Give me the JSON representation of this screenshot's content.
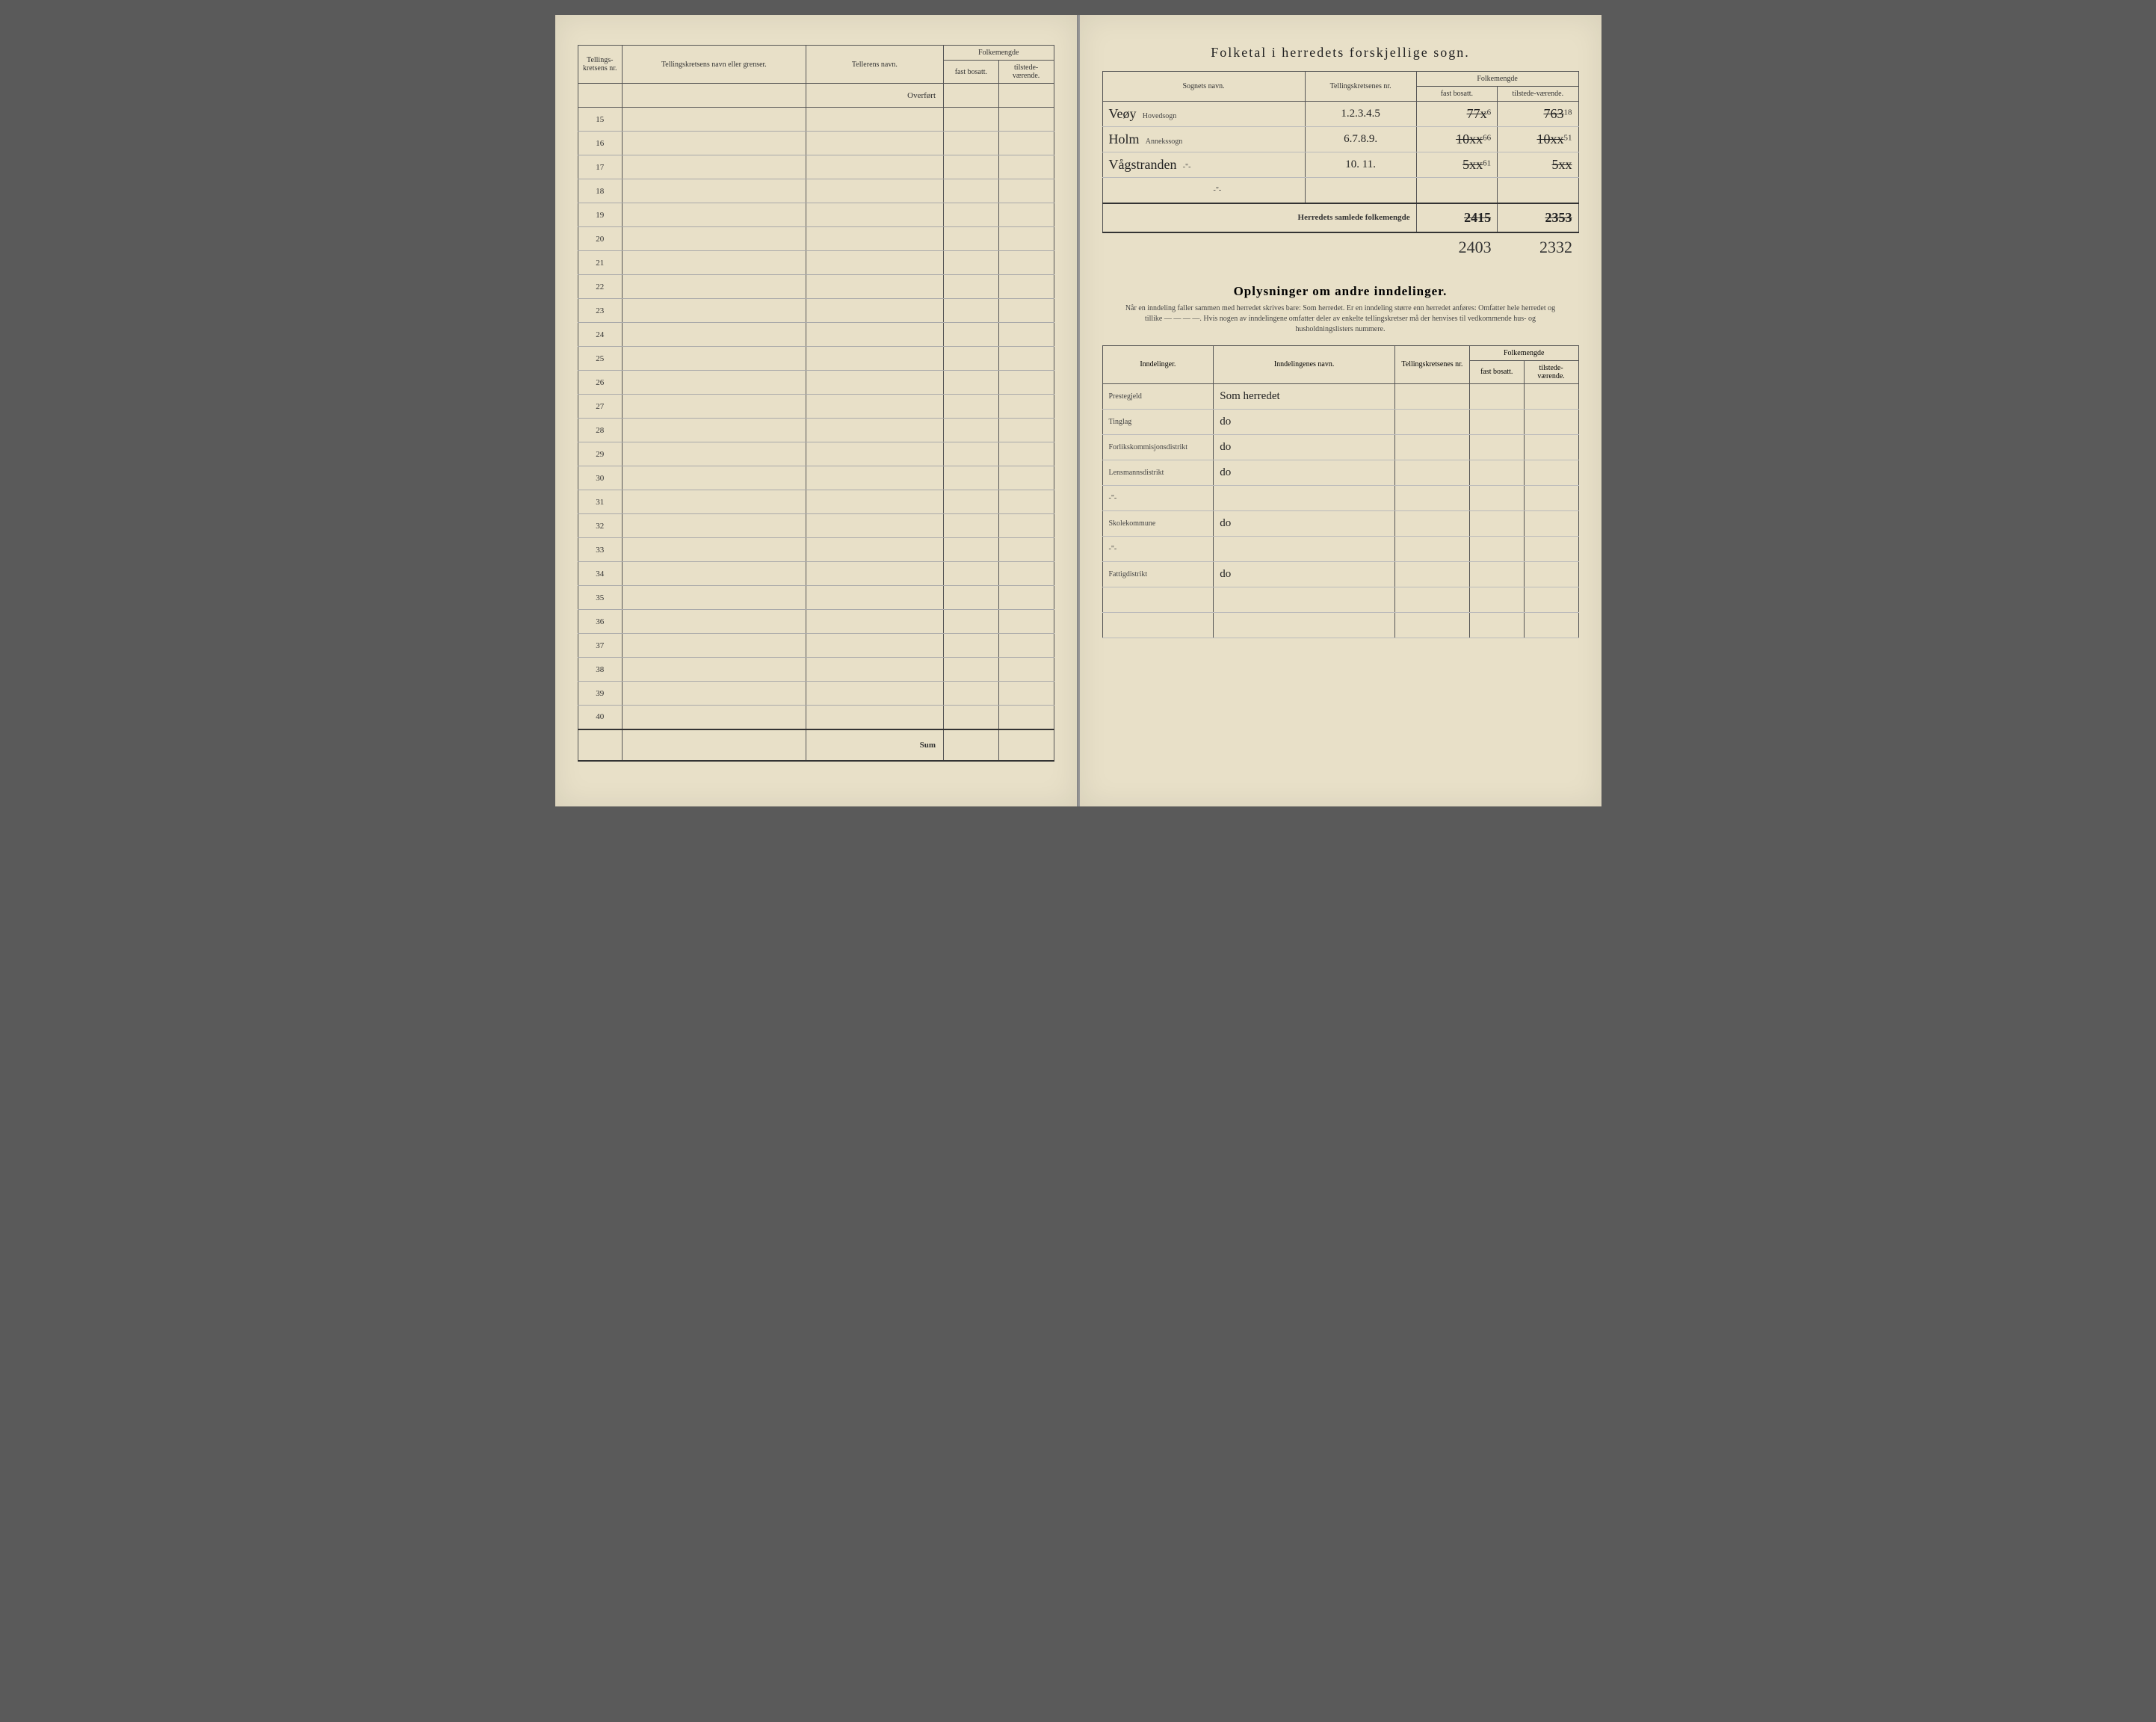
{
  "left": {
    "headers": {
      "nr": "Tellings-kretsens nr.",
      "navn": "Tellingskretsens navn eller grenser.",
      "teller": "Tellerens navn.",
      "folkemengde": "Folkemengde",
      "fast": "fast bosatt.",
      "tilstede": "tilstede-værende."
    },
    "overfort": "Overført",
    "row_numbers": [
      "15",
      "16",
      "17",
      "18",
      "19",
      "20",
      "21",
      "22",
      "23",
      "24",
      "25",
      "26",
      "27",
      "28",
      "29",
      "30",
      "31",
      "32",
      "33",
      "34",
      "35",
      "36",
      "37",
      "38",
      "39",
      "40"
    ],
    "sum": "Sum"
  },
  "right": {
    "title1": "Folketal i herredets forskjellige sogn.",
    "headers": {
      "sogn": "Sognets navn.",
      "kretser": "Tellingskretsenes nr.",
      "folkemengde": "Folkemengde",
      "fast": "fast bosatt.",
      "tilstede": "tilstede-værende."
    },
    "sogn_rows": [
      {
        "navn": "Veøy",
        "type": "Hovedsogn",
        "kretser": "1.2.3.4.5",
        "fast_old": "77x",
        "fast_corr": "6",
        "til_old": "763",
        "til_corr": "18"
      },
      {
        "navn": "Holm",
        "type": "Annekssogn",
        "kretser": "6.7.8.9.",
        "fast_old": "10xx",
        "fast_corr": "66",
        "til_old": "10xx",
        "til_corr": "51"
      },
      {
        "navn": "Vågstranden",
        "type": "-\"-",
        "kretser": "10. 11.",
        "fast_old": "5xx",
        "fast_corr": "61",
        "til_old": "5xx",
        "til_corr": ""
      }
    ],
    "blank_type": "-\"-",
    "samlede_label": "Herredets samlede folkemengde",
    "samlede_fast_old": "2415",
    "samlede_til_old": "2353",
    "samlede_fast_new": "2403",
    "samlede_til_new": "2332",
    "title2": "Oplysninger om andre inndelinger.",
    "subtitle": "Når en inndeling faller sammen med herredet skrives bare: Som herredet. Er en inndeling større enn herredet anføres: Omfatter hele herredet og tillike — — — —. Hvis nogen av inndelingene omfatter deler av enkelte tellingskretser må der henvises til vedkommende hus- og husholdningslisters nummere.",
    "inndel_headers": {
      "innd": "Inndelinger.",
      "navn": "Inndelingenes navn.",
      "kr": "Tellingskretsenes nr.",
      "folkemengde": "Folkemengde",
      "fast": "fast bosatt.",
      "tilstede": "tilstede-værende."
    },
    "inndel_rows": [
      {
        "label": "Prestegjeld",
        "val": "Som herredet"
      },
      {
        "label": "Tinglag",
        "val": "do"
      },
      {
        "label": "Forlikskommisjonsdistrikt",
        "val": "do"
      },
      {
        "label": "Lensmannsdistrikt",
        "val": "do"
      },
      {
        "label": "-\"-",
        "val": ""
      },
      {
        "label": "Skolekommune",
        "val": "do"
      },
      {
        "label": "-\"-",
        "val": ""
      },
      {
        "label": "Fattigdistrikt",
        "val": "do"
      },
      {
        "label": "",
        "val": ""
      },
      {
        "label": "",
        "val": ""
      }
    ]
  },
  "colors": {
    "paper": "#e8e0c8",
    "ink": "#222222",
    "rule": "#555555"
  }
}
